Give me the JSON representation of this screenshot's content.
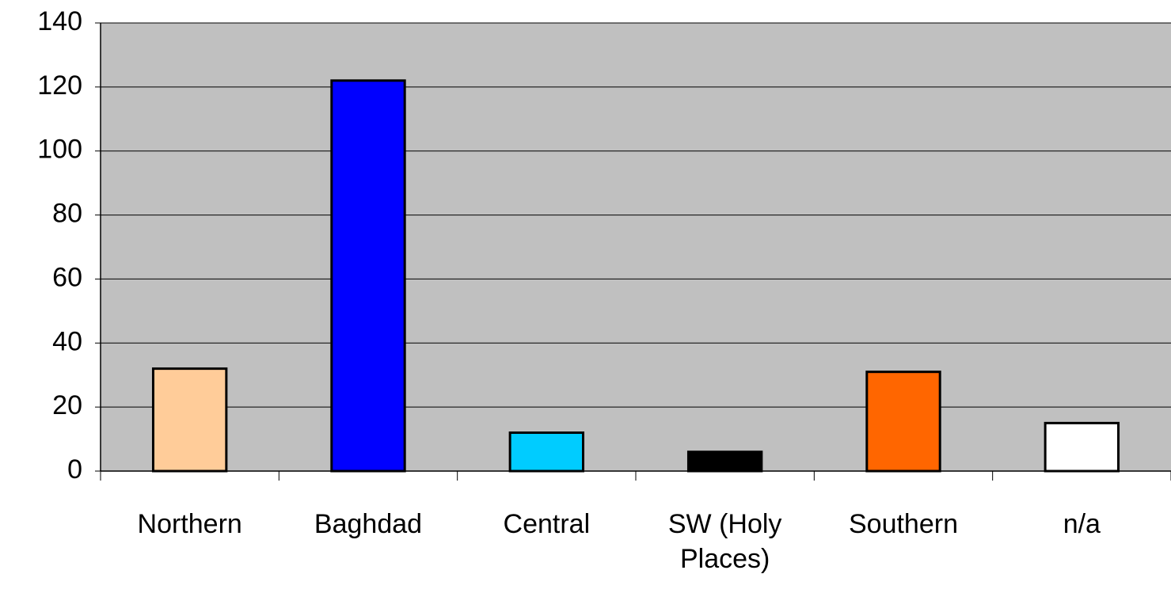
{
  "chart_data": {
    "type": "bar",
    "categories": [
      "Northern",
      "Baghdad",
      "Central",
      "SW (Holy Places)",
      "Southern",
      "n/a"
    ],
    "values": [
      32,
      122,
      12,
      6,
      31,
      15
    ],
    "colors": [
      "#ffcc99",
      "#0000ff",
      "#00ccff",
      "#000000",
      "#ff6600",
      "#ffffff"
    ],
    "ylim": [
      0,
      140
    ],
    "yticks": [
      0,
      20,
      40,
      60,
      80,
      100,
      120,
      140
    ],
    "grid": true,
    "plot_background": "#c0c0c0"
  }
}
